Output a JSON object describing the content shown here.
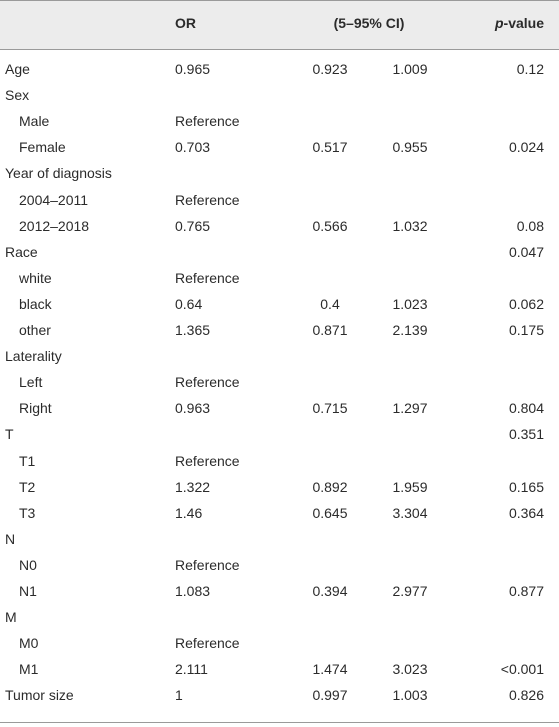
{
  "table": {
    "headers": {
      "or": "OR",
      "ci": "(5–95% CI)",
      "p_italic": "p",
      "p_rest": "-value"
    },
    "rows": [
      {
        "label": "Age",
        "indent": false,
        "or": "0.965",
        "ci_low": "0.923",
        "ci_high": "1.009",
        "p": "0.12"
      },
      {
        "label": "Sex",
        "indent": false,
        "or": "",
        "ci_low": "",
        "ci_high": "",
        "p": ""
      },
      {
        "label": "Male",
        "indent": true,
        "or": "Reference",
        "ci_low": "",
        "ci_high": "",
        "p": ""
      },
      {
        "label": "Female",
        "indent": true,
        "or": "0.703",
        "ci_low": "0.517",
        "ci_high": "0.955",
        "p": "0.024"
      },
      {
        "label": "Year of diagnosis",
        "indent": false,
        "or": "",
        "ci_low": "",
        "ci_high": "",
        "p": ""
      },
      {
        "label": "2004–2011",
        "indent": true,
        "or": "Reference",
        "ci_low": "",
        "ci_high": "",
        "p": ""
      },
      {
        "label": "2012–2018",
        "indent": true,
        "or": "0.765",
        "ci_low": "0.566",
        "ci_high": "1.032",
        "p": "0.08"
      },
      {
        "label": "Race",
        "indent": false,
        "or": "",
        "ci_low": "",
        "ci_high": "",
        "p": "0.047"
      },
      {
        "label": "white",
        "indent": true,
        "or": "Reference",
        "ci_low": "",
        "ci_high": "",
        "p": ""
      },
      {
        "label": "black",
        "indent": true,
        "or": "0.64",
        "ci_low": "0.4",
        "ci_high": "1.023",
        "p": "0.062"
      },
      {
        "label": "other",
        "indent": true,
        "or": "1.365",
        "ci_low": "0.871",
        "ci_high": "2.139",
        "p": "0.175"
      },
      {
        "label": "Laterality",
        "indent": false,
        "or": "",
        "ci_low": "",
        "ci_high": "",
        "p": ""
      },
      {
        "label": "Left",
        "indent": true,
        "or": "Reference",
        "ci_low": "",
        "ci_high": "",
        "p": ""
      },
      {
        "label": "Right",
        "indent": true,
        "or": "0.963",
        "ci_low": "0.715",
        "ci_high": "1.297",
        "p": "0.804"
      },
      {
        "label": "T",
        "indent": false,
        "or": "",
        "ci_low": "",
        "ci_high": "",
        "p": "0.351"
      },
      {
        "label": "T1",
        "indent": true,
        "or": "Reference",
        "ci_low": "",
        "ci_high": "",
        "p": ""
      },
      {
        "label": "T2",
        "indent": true,
        "or": "1.322",
        "ci_low": "0.892",
        "ci_high": "1.959",
        "p": "0.165"
      },
      {
        "label": "T3",
        "indent": true,
        "or": "1.46",
        "ci_low": "0.645",
        "ci_high": "3.304",
        "p": "0.364"
      },
      {
        "label": "N",
        "indent": false,
        "or": "",
        "ci_low": "",
        "ci_high": "",
        "p": ""
      },
      {
        "label": "N0",
        "indent": true,
        "or": "Reference",
        "ci_low": "",
        "ci_high": "",
        "p": ""
      },
      {
        "label": "N1",
        "indent": true,
        "or": "1.083",
        "ci_low": "0.394",
        "ci_high": "2.977",
        "p": "0.877"
      },
      {
        "label": "M",
        "indent": false,
        "or": "",
        "ci_low": "",
        "ci_high": "",
        "p": ""
      },
      {
        "label": "M0",
        "indent": true,
        "or": "Reference",
        "ci_low": "",
        "ci_high": "",
        "p": ""
      },
      {
        "label": "M1",
        "indent": true,
        "or": "2.111",
        "ci_low": "1.474",
        "ci_high": "3.023",
        "p": "<0.001"
      },
      {
        "label": "Tumor size",
        "indent": false,
        "or": "1",
        "ci_low": "0.997",
        "ci_high": "1.003",
        "p": "0.826"
      }
    ]
  }
}
